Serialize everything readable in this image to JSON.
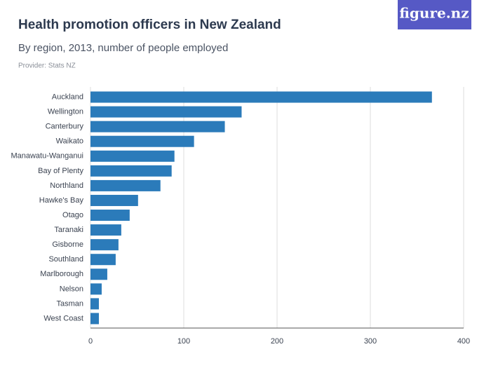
{
  "brand": "figure.nz",
  "chart_data": {
    "type": "hbar",
    "title": "Health promotion officers in New Zealand",
    "subtitle": "By region, 2013, number of people employed",
    "provider": "Provider: Stats NZ",
    "categories": [
      "Auckland",
      "Wellington",
      "Canterbury",
      "Waikato",
      "Manawatu-Wanganui",
      "Bay of Plenty",
      "Northland",
      "Hawke's Bay",
      "Otago",
      "Taranaki",
      "Gisborne",
      "Southland",
      "Marlborough",
      "Nelson",
      "Tasman",
      "West Coast"
    ],
    "values": [
      366,
      162,
      144,
      111,
      90,
      87,
      75,
      51,
      42,
      33,
      30,
      27,
      18,
      12,
      9,
      9
    ],
    "color": "#2b7bba",
    "xlim": [
      0,
      400
    ],
    "xticks": [
      0,
      100,
      200,
      300,
      400
    ],
    "grid": true
  }
}
